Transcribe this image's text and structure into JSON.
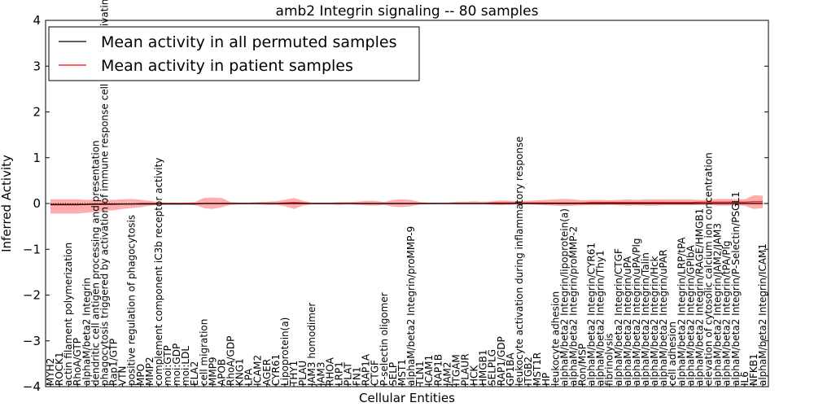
{
  "chart_data": {
    "type": "line",
    "title": "amb2 Integrin signaling -- 80 samples",
    "xlabel": "Cellular Entities",
    "ylabel": "Inferred Activity",
    "ylim": [
      -4,
      4
    ],
    "yticks": [
      -4,
      -3,
      -2,
      -1,
      0,
      1,
      2,
      3,
      4
    ],
    "ytick_labels": [
      "−4",
      "−3",
      "−2",
      "−1",
      "0",
      "1",
      "2",
      "3",
      "4"
    ],
    "legend": {
      "position": "top-left",
      "entries": [
        {
          "label": "Mean activity in all permuted samples",
          "color": "#000000"
        },
        {
          "label": "Mean activity in patient samples",
          "color": "#ff0000"
        }
      ]
    },
    "categories": [
      "MYH2",
      "ROCK1",
      "actin filament polymerization",
      "RhoA/GTP",
      "alphaM/beta2 Integrin",
      "dendritic cell antigen processing and presentation",
      "phagocytosis triggered by activation of immune response cell surface activating receptor",
      "Rap1/GTP",
      "VTN",
      "positive regulation of phagocytosis",
      "MPO",
      "MMP2",
      "complement component iC3b receptor activity",
      "moi:GTP",
      "moi:GDP",
      "moi:LDL",
      "ELA2",
      "cell migration",
      "MMP9",
      "APOB",
      "RhoA/GDP",
      "KNG1",
      "LPA",
      "ICAM2",
      "AGER",
      "CYR61",
      "Lipoprotein(a)",
      "THY1",
      "PLAU",
      "JAM3 homodimer",
      "JAM3",
      "RHOA",
      "LRP1",
      "PLAT",
      "FN1",
      "RAP1A",
      "CTGF",
      "P-selectin oligomer",
      "SELP",
      "MST1",
      "alphaM/beta2 Integrin/proMMP-9",
      "TLN1",
      "ICAM1",
      "RAP1B",
      "JAM2",
      "ITGAM",
      "PLAUR",
      "HCK",
      "HMGB1",
      "SELPLG",
      "RAP1/GDP",
      "GP1BA",
      "leukocyte activation during inflammatory response",
      "ITGB2",
      "MST1R",
      "HP",
      "leukocyte adhesion",
      "alphaM/beta2 Integrin/lipoprotein(a)",
      "alphaM/beta2 Integrin/proMMP-2",
      "Ron/MSP",
      "alphaM/beta2 Integrin/CYR61",
      "alphaM/beta2 Integrin/Thy1",
      "fibrinolysis",
      "alphaM/beta2 Integrin/CTGF",
      "alphaM/beta2 Integrin/uPA",
      "alphaM/beta2 Integrin/uPA/Plg",
      "alphaM/beta2 Integrin/Talin",
      "alphaM/beta2 Integrin/Hck",
      "alphaM/beta2 Integrin/uPAR",
      "cell adhesion",
      "alphaM/beta2 Integrin/LRP/tPA",
      "alphaM/beta2 Integrin/GPIbA",
      "alphaM/beta2 Integrin/RAGE/HMGB1",
      "elevation of cytosolic calcium ion concentration",
      "alphaM/beta2 Integrin/JAM2/JAM3",
      "alphaM/beta2 Integrin/tPA/Plg",
      "alphaM/beta2 Integrin/P-Selectin/PSGL1",
      "IL6",
      "NFKB1",
      "alphaM/beta2 Integrin/ICAM1"
    ],
    "series": [
      {
        "name": "Mean activity in all permuted samples",
        "color": "#000000",
        "values": [
          -0.02,
          -0.02,
          -0.02,
          -0.02,
          -0.02,
          -0.01,
          -0.01,
          -0.01,
          -0.01,
          -0.01,
          -0.01,
          -0.01,
          -0.01,
          -0.01,
          -0.01,
          -0.01,
          -0.01,
          0.0,
          0.0,
          0.0,
          0.0,
          0.0,
          0.0,
          0.0,
          0.0,
          0.0,
          0.0,
          0.0,
          0.0,
          0.0,
          0.0,
          0.0,
          0.0,
          0.0,
          0.0,
          0.0,
          0.0,
          0.0,
          0.0,
          0.0,
          0.0,
          0.0,
          0.0,
          0.0,
          0.0,
          0.0,
          0.0,
          0.0,
          0.0,
          0.0,
          0.0,
          0.0,
          0.0,
          0.0,
          0.0,
          0.0,
          0.0,
          0.0,
          0.0,
          0.0,
          0.0,
          0.0,
          0.0,
          0.0,
          0.0,
          0.0,
          0.0,
          0.0,
          0.0,
          0.0,
          0.0,
          0.0,
          0.0,
          0.0,
          0.0,
          0.0,
          0.0,
          0.0,
          0.0,
          0.0
        ]
      },
      {
        "name": "Mean activity in patient samples",
        "color": "#ff0000",
        "values": [
          -0.03,
          -0.03,
          -0.03,
          -0.03,
          -0.02,
          -0.02,
          -0.02,
          -0.02,
          -0.01,
          -0.01,
          0.0,
          0.0,
          0.0,
          0.0,
          0.0,
          0.0,
          0.0,
          0.0,
          0.0,
          0.0,
          0.0,
          0.0,
          0.0,
          0.0,
          0.0,
          0.0,
          0.01,
          0.02,
          0.01,
          0.0,
          0.0,
          0.0,
          0.0,
          0.0,
          0.0,
          0.0,
          0.0,
          0.0,
          0.0,
          0.0,
          0.0,
          0.0,
          0.0,
          0.0,
          0.0,
          0.0,
          0.0,
          0.0,
          0.0,
          0.01,
          0.01,
          0.01,
          0.01,
          0.01,
          0.01,
          0.01,
          0.01,
          0.01,
          0.01,
          0.01,
          0.02,
          0.02,
          0.02,
          0.02,
          0.02,
          0.02,
          0.02,
          0.02,
          0.02,
          0.02,
          0.02,
          0.02,
          0.03,
          0.03,
          0.03,
          0.03,
          0.03,
          0.03,
          0.04,
          0.04
        ]
      }
    ],
    "band": {
      "color": "#ff8080",
      "upper": [
        0.09,
        0.09,
        0.09,
        0.09,
        0.08,
        0.08,
        0.08,
        0.08,
        0.09,
        0.1,
        0.08,
        0.06,
        0.03,
        0.02,
        0.02,
        0.02,
        0.03,
        0.12,
        0.13,
        0.12,
        0.03,
        0.02,
        0.02,
        0.03,
        0.04,
        0.05,
        0.08,
        0.12,
        0.06,
        0.02,
        0.02,
        0.02,
        0.03,
        0.03,
        0.04,
        0.06,
        0.06,
        0.03,
        0.08,
        0.09,
        0.08,
        0.03,
        0.02,
        0.02,
        0.02,
        0.04,
        0.04,
        0.05,
        0.04,
        0.05,
        0.07,
        0.06,
        0.05,
        0.06,
        0.07,
        0.08,
        0.09,
        0.1,
        0.09,
        0.07,
        0.08,
        0.08,
        0.07,
        0.08,
        0.09,
        0.08,
        0.09,
        0.09,
        0.09,
        0.09,
        0.09,
        0.09,
        0.08,
        0.08,
        0.1,
        0.1,
        0.09,
        0.09,
        0.18,
        0.17
      ],
      "lower": [
        -0.22,
        -0.22,
        -0.22,
        -0.22,
        -0.2,
        -0.18,
        -0.16,
        -0.15,
        -0.12,
        -0.1,
        -0.08,
        -0.05,
        -0.03,
        -0.02,
        -0.02,
        -0.02,
        -0.03,
        -0.1,
        -0.12,
        -0.08,
        -0.03,
        -0.02,
        -0.02,
        -0.02,
        -0.03,
        -0.03,
        -0.06,
        -0.12,
        -0.05,
        -0.02,
        -0.02,
        -0.02,
        -0.03,
        -0.02,
        -0.03,
        -0.04,
        -0.05,
        -0.03,
        -0.07,
        -0.08,
        -0.06,
        -0.02,
        -0.02,
        -0.01,
        -0.01,
        -0.02,
        -0.02,
        -0.02,
        -0.02,
        -0.03,
        -0.04,
        -0.03,
        -0.02,
        -0.02,
        -0.03,
        -0.04,
        -0.05,
        -0.06,
        -0.05,
        -0.04,
        -0.04,
        -0.04,
        -0.03,
        -0.04,
        -0.05,
        -0.04,
        -0.05,
        -0.05,
        -0.04,
        -0.04,
        -0.04,
        -0.04,
        -0.03,
        -0.03,
        -0.05,
        -0.05,
        -0.04,
        -0.05,
        -0.12,
        -0.1
      ]
    }
  }
}
